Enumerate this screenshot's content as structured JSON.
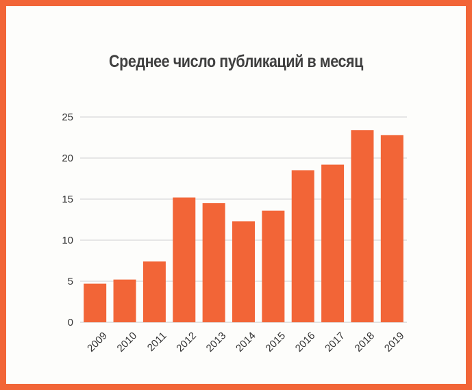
{
  "chart_data": {
    "type": "bar",
    "title": "Среднее число публикаций в месяц",
    "xlabel": "",
    "ylabel": "",
    "categories": [
      "2009",
      "2010",
      "2011",
      "2012",
      "2013",
      "2014",
      "2015",
      "2016",
      "2017",
      "2018",
      "2019"
    ],
    "values": [
      4.7,
      5.2,
      7.4,
      15.2,
      14.5,
      12.3,
      13.6,
      18.5,
      19.2,
      23.4,
      22.8
    ],
    "ylim": [
      0,
      25
    ],
    "yticks": [
      "0",
      "5",
      "10",
      "15",
      "20",
      "25"
    ],
    "grid": true,
    "colors": {
      "bar": "#f26537",
      "frame": "#f26537",
      "background": "#fdfdfb",
      "grid": "#d0d0d0",
      "axis": "#c8c8c8"
    }
  }
}
